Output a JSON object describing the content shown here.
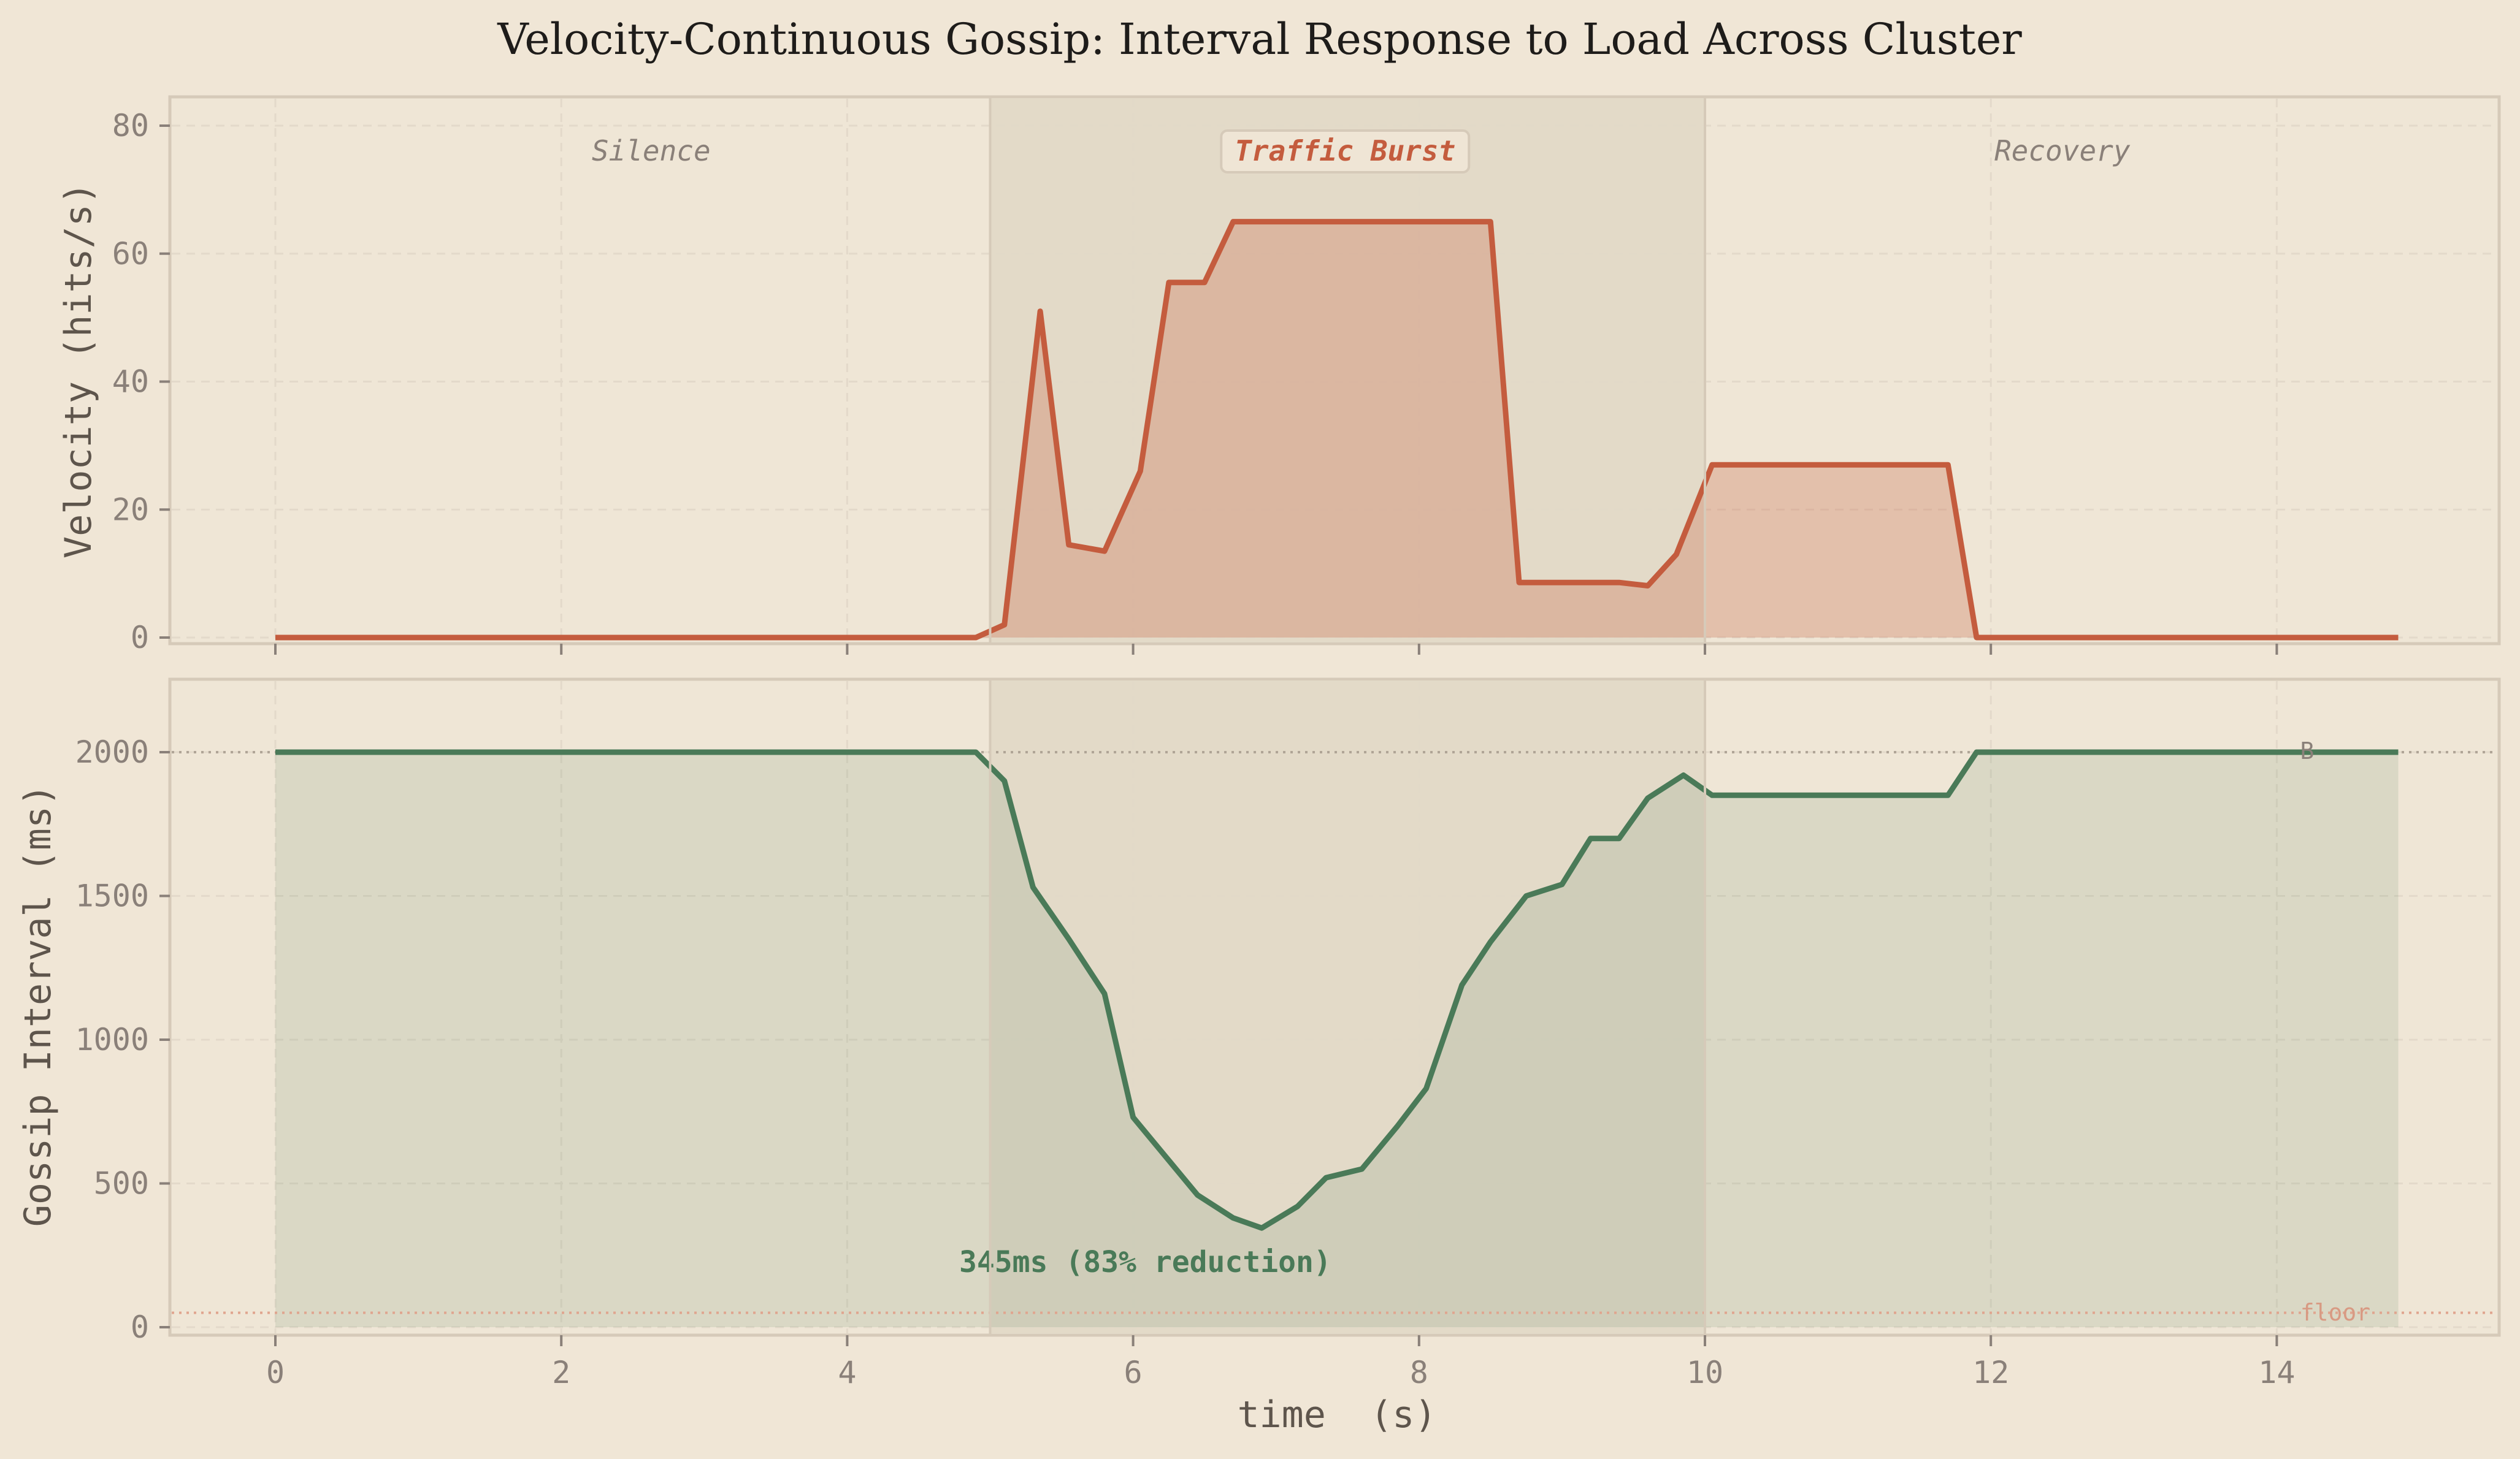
{
  "title": "Velocity-Continuous Gossip: Interval Response to Load Across Cluster",
  "colors": {
    "background": "#f0e6d6",
    "velocity": "#c45c3e",
    "interval": "#4a7a58",
    "burst_band": "#e2d9c7",
    "spine": "#d6cab9",
    "floor": "#e0a58f"
  },
  "labels": {
    "xlabel": "time  (s)",
    "top_ylabel": "Velocity  (hits/s)",
    "bottom_ylabel": "Gossip Interval  (ms)",
    "phase_silence": "Silence",
    "phase_burst": "Traffic Burst",
    "phase_recovery": "Recovery",
    "baseline_marker": "B",
    "floor_marker": "floor",
    "min_annotation": "345ms  (83% reduction)"
  },
  "chart_data": [
    {
      "type": "area",
      "title": "Velocity",
      "xlabel": "",
      "ylabel": "Velocity  (hits/s)",
      "xlim": [
        -0.75,
        15.6
      ],
      "ylim": [
        -1,
        85
      ],
      "xticks": [
        0,
        2,
        4,
        6,
        8,
        10,
        12,
        14
      ],
      "yticks": [
        0,
        20,
        40,
        60,
        80
      ],
      "grid": true,
      "shaded_regions": [
        {
          "x0": 5,
          "x1": 10,
          "label": "Traffic Burst"
        }
      ],
      "phase_labels": [
        {
          "x": 2.5,
          "text": "Silence"
        },
        {
          "x": 7.5,
          "text": "Traffic Burst"
        },
        {
          "x": 12.5,
          "text": "Recovery"
        }
      ],
      "series": [
        {
          "name": "velocity",
          "x": [
            0,
            4.9,
            5.1,
            5.35,
            5.55,
            5.8,
            6.05,
            6.25,
            6.5,
            6.7,
            8.5,
            8.7,
            9.4,
            9.6,
            9.8,
            10.05,
            11.7,
            11.9,
            14.85
          ],
          "values": [
            0,
            0,
            2,
            51,
            14.5,
            13.5,
            26,
            55.5,
            55.5,
            65,
            65,
            8.6,
            8.6,
            8.1,
            13,
            27,
            27,
            0,
            0
          ]
        }
      ]
    },
    {
      "type": "area",
      "title": "Gossip Interval",
      "xlabel": "time  (s)",
      "ylabel": "Gossip Interval  (ms)",
      "xlim": [
        -0.75,
        15.6
      ],
      "ylim": [
        -25,
        2250
      ],
      "xticks": [
        0,
        2,
        4,
        6,
        8,
        10,
        12,
        14
      ],
      "yticks": [
        0,
        500,
        1000,
        1500,
        2000
      ],
      "grid": true,
      "reference_lines": [
        {
          "y": 2000,
          "label": "B",
          "style": "dotted"
        },
        {
          "y": 50,
          "label": "floor",
          "style": "dotted"
        }
      ],
      "shaded_regions": [
        {
          "x0": 5,
          "x1": 10
        }
      ],
      "annotations": [
        {
          "x": 6.9,
          "y": 345,
          "text": "345ms  (83% reduction)"
        }
      ],
      "series": [
        {
          "name": "gossip_interval",
          "x": [
            0,
            4.9,
            5.1,
            5.3,
            5.55,
            5.8,
            6.0,
            6.25,
            6.45,
            6.7,
            6.9,
            7.15,
            7.35,
            7.6,
            7.85,
            8.05,
            8.3,
            8.5,
            8.75,
            9.0,
            9.2,
            9.4,
            9.6,
            9.85,
            10.05,
            11.7,
            11.9,
            14.85
          ],
          "values": [
            2000,
            2000,
            1900,
            1530,
            1350,
            1160,
            730,
            580,
            460,
            380,
            345,
            420,
            520,
            550,
            700,
            830,
            1190,
            1340,
            1500,
            1540,
            1700,
            1700,
            1840,
            1920,
            1850,
            1850,
            2000,
            2000
          ]
        }
      ]
    }
  ]
}
